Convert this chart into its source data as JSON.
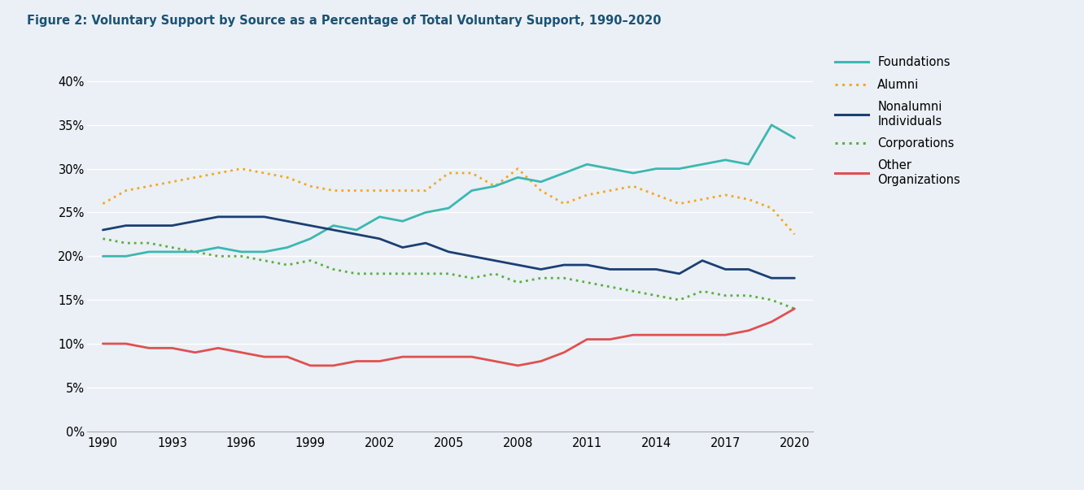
{
  "title": "Figure 2: Voluntary Support by Source as a Percentage of Total Voluntary Support, 1990–2020",
  "title_color": "#1a5276",
  "background_color": "#eaf0f6",
  "years": [
    1990,
    1991,
    1992,
    1993,
    1994,
    1995,
    1996,
    1997,
    1998,
    1999,
    2000,
    2001,
    2002,
    2003,
    2004,
    2005,
    2006,
    2007,
    2008,
    2009,
    2010,
    2011,
    2012,
    2013,
    2014,
    2015,
    2016,
    2017,
    2018,
    2019,
    2020
  ],
  "foundations": [
    20.0,
    20.0,
    20.5,
    20.5,
    20.5,
    21.0,
    20.5,
    20.5,
    21.0,
    22.0,
    23.5,
    23.0,
    24.5,
    24.0,
    25.0,
    25.5,
    27.5,
    28.0,
    29.0,
    28.5,
    29.5,
    30.5,
    30.0,
    29.5,
    30.0,
    30.0,
    30.5,
    31.0,
    30.5,
    35.0,
    33.5
  ],
  "alumni": [
    26.0,
    27.5,
    28.0,
    28.5,
    29.0,
    29.5,
    30.0,
    29.5,
    29.0,
    28.0,
    27.5,
    27.5,
    27.5,
    27.5,
    27.5,
    29.5,
    29.5,
    28.0,
    30.0,
    27.5,
    26.0,
    27.0,
    27.5,
    28.0,
    27.0,
    26.0,
    26.5,
    27.0,
    26.5,
    25.5,
    22.5
  ],
  "nonalumni": [
    23.0,
    23.5,
    23.5,
    23.5,
    24.0,
    24.5,
    24.5,
    24.5,
    24.0,
    23.5,
    23.0,
    22.5,
    22.0,
    21.0,
    21.5,
    20.5,
    20.0,
    19.5,
    19.0,
    18.5,
    19.0,
    19.0,
    18.5,
    18.5,
    18.5,
    18.0,
    19.5,
    18.5,
    18.5,
    17.5,
    17.5
  ],
  "corporations": [
    22.0,
    21.5,
    21.5,
    21.0,
    20.5,
    20.0,
    20.0,
    19.5,
    19.0,
    19.5,
    18.5,
    18.0,
    18.0,
    18.0,
    18.0,
    18.0,
    17.5,
    18.0,
    17.0,
    17.5,
    17.5,
    17.0,
    16.5,
    16.0,
    15.5,
    15.0,
    16.0,
    15.5,
    15.5,
    15.0,
    14.0
  ],
  "other": [
    10.0,
    10.0,
    9.5,
    9.5,
    9.0,
    9.5,
    9.0,
    8.5,
    8.5,
    7.5,
    7.5,
    8.0,
    8.0,
    8.5,
    8.5,
    8.5,
    8.5,
    8.0,
    7.5,
    8.0,
    9.0,
    10.5,
    10.5,
    11.0,
    11.0,
    11.0,
    11.0,
    11.0,
    11.5,
    12.5,
    14.0
  ],
  "foundations_color": "#3bb8b0",
  "alumni_color": "#f5a623",
  "nonalumni_color": "#1b3f72",
  "corporations_color": "#5aaf3c",
  "other_color": "#e05050",
  "ylim": [
    0,
    42
  ],
  "yticks": [
    0,
    5,
    10,
    15,
    20,
    25,
    30,
    35,
    40
  ],
  "ytick_labels": [
    "0%",
    "5%",
    "10%",
    "15%",
    "20%",
    "25%",
    "30%",
    "35%",
    "40%"
  ],
  "xticks": [
    1990,
    1993,
    1996,
    1999,
    2002,
    2005,
    2008,
    2011,
    2014,
    2017,
    2020
  ]
}
